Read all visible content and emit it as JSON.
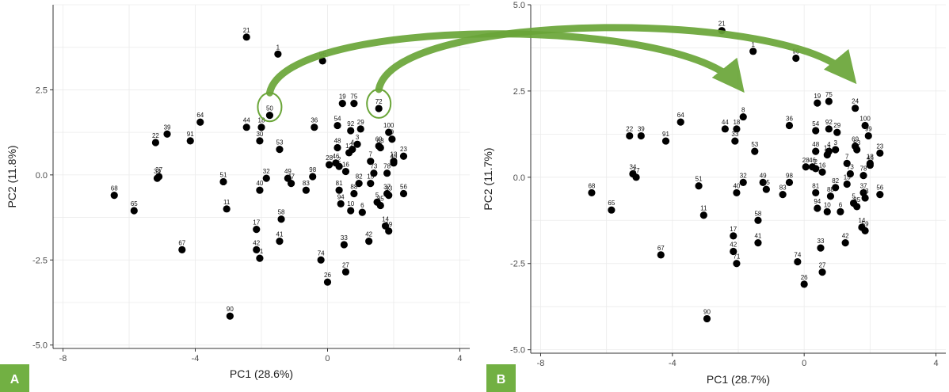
{
  "colors": {
    "point": "#000000",
    "arrow": "#6aa538",
    "circle": "#6aa538",
    "badge": "#72b043",
    "grid": "#ebebeb"
  },
  "chart_data": [
    {
      "type": "scatter",
      "panel_label": "A",
      "xlabel": "PC1 (28.6%)",
      "ylabel": "PC2 (11.8%)",
      "xlim": [
        -8.3,
        4.3
      ],
      "ylim": [
        -5.1,
        5.0
      ],
      "xticks": [
        "-8",
        "-4",
        "0",
        "4"
      ],
      "yticks": [
        "-5.0",
        "-2.5",
        "0.0",
        "2.5"
      ],
      "xtick_values": [
        -8,
        -4,
        0,
        4
      ],
      "ytick_values": [
        -5,
        -2.5,
        0,
        2.5
      ],
      "grid": true,
      "highlight_circles": [
        {
          "label": "50",
          "x": -1.75,
          "y": 1.9
        },
        {
          "label": "72",
          "x": 1.55,
          "y": 2.0
        }
      ],
      "points": [
        {
          "l": "21",
          "x": -2.45,
          "y": 4.05
        },
        {
          "l": "1",
          "x": -1.5,
          "y": 3.55
        },
        {
          "l": "96",
          "x": -0.15,
          "y": 3.35
        },
        {
          "l": "64",
          "x": -3.85,
          "y": 1.55
        },
        {
          "l": "39",
          "x": -4.85,
          "y": 1.2
        },
        {
          "l": "22",
          "x": -5.2,
          "y": 0.95
        },
        {
          "l": "91",
          "x": -4.15,
          "y": 1.0
        },
        {
          "l": "37",
          "x": -5.1,
          "y": -0.05
        },
        {
          "l": "34",
          "x": -5.15,
          "y": -0.1
        },
        {
          "l": "68",
          "x": -6.45,
          "y": -0.6
        },
        {
          "l": "65",
          "x": -5.85,
          "y": -1.05
        },
        {
          "l": "67",
          "x": -4.4,
          "y": -2.2
        },
        {
          "l": "51",
          "x": -3.15,
          "y": -0.2
        },
        {
          "l": "11",
          "x": -3.05,
          "y": -1.0
        },
        {
          "l": "44",
          "x": -2.45,
          "y": 1.4
        },
        {
          "l": "18",
          "x": -2.0,
          "y": 1.4
        },
        {
          "l": "50",
          "x": -1.75,
          "y": 1.75
        },
        {
          "l": "30",
          "x": -2.05,
          "y": 1.0
        },
        {
          "l": "53",
          "x": -1.45,
          "y": 0.75
        },
        {
          "l": "36",
          "x": -0.4,
          "y": 1.4
        },
        {
          "l": "32",
          "x": -1.85,
          "y": -0.1
        },
        {
          "l": "40",
          "x": -2.05,
          "y": -0.45
        },
        {
          "l": "49",
          "x": -1.2,
          "y": -0.1
        },
        {
          "l": "47",
          "x": -1.1,
          "y": -0.25
        },
        {
          "l": "98",
          "x": -0.45,
          "y": -0.05
        },
        {
          "l": "83",
          "x": -0.65,
          "y": -0.45
        },
        {
          "l": "58",
          "x": -1.4,
          "y": -1.3
        },
        {
          "l": "17",
          "x": -2.15,
          "y": -1.6
        },
        {
          "l": "41",
          "x": -1.45,
          "y": -1.95
        },
        {
          "l": "42",
          "x": -2.15,
          "y": -2.2
        },
        {
          "l": "71",
          "x": -2.05,
          "y": -2.45
        },
        {
          "l": "74",
          "x": -0.2,
          "y": -2.5
        },
        {
          "l": "26",
          "x": 0.0,
          "y": -3.15
        },
        {
          "l": "27",
          "x": 0.55,
          "y": -2.85
        },
        {
          "l": "33",
          "x": 0.5,
          "y": -2.05
        },
        {
          "l": "90",
          "x": -2.95,
          "y": -4.15
        },
        {
          "l": "19",
          "x": 0.45,
          "y": 2.1
        },
        {
          "l": "75",
          "x": 0.8,
          "y": 2.1
        },
        {
          "l": "72",
          "x": 1.55,
          "y": 1.95
        },
        {
          "l": "54",
          "x": 0.3,
          "y": 1.45
        },
        {
          "l": "92",
          "x": 0.7,
          "y": 1.3
        },
        {
          "l": "29",
          "x": 1.0,
          "y": 1.35
        },
        {
          "l": "100",
          "x": 1.85,
          "y": 1.25
        },
        {
          "l": "9",
          "x": 1.95,
          "y": 1.05
        },
        {
          "l": "3",
          "x": 0.9,
          "y": 0.9
        },
        {
          "l": "48",
          "x": 0.3,
          "y": 0.8
        },
        {
          "l": "4",
          "x": 0.75,
          "y": 0.75
        },
        {
          "l": "12",
          "x": 0.65,
          "y": 0.65
        },
        {
          "l": "69",
          "x": 1.55,
          "y": 0.85
        },
        {
          "l": "63",
          "x": 1.6,
          "y": 0.8
        },
        {
          "l": "23",
          "x": 2.3,
          "y": 0.55
        },
        {
          "l": "28",
          "x": 0.05,
          "y": 0.3
        },
        {
          "l": "46",
          "x": 0.25,
          "y": 0.35
        },
        {
          "l": "2",
          "x": 0.35,
          "y": 0.25
        },
        {
          "l": "16",
          "x": 0.55,
          "y": 0.1
        },
        {
          "l": "7",
          "x": 1.3,
          "y": 0.4
        },
        {
          "l": "73",
          "x": 1.4,
          "y": 0.05
        },
        {
          "l": "78",
          "x": 1.8,
          "y": 0.05
        },
        {
          "l": "13",
          "x": 2.0,
          "y": 0.4
        },
        {
          "l": "45",
          "x": 2.0,
          "y": 0.35
        },
        {
          "l": "82",
          "x": 0.95,
          "y": -0.25
        },
        {
          "l": "15",
          "x": 1.3,
          "y": -0.25
        },
        {
          "l": "81",
          "x": 0.35,
          "y": -0.45
        },
        {
          "l": "88",
          "x": 0.8,
          "y": -0.55
        },
        {
          "l": "37",
          "x": 1.8,
          "y": -0.55
        },
        {
          "l": "43",
          "x": 1.85,
          "y": -0.6
        },
        {
          "l": "56",
          "x": 2.3,
          "y": -0.55
        },
        {
          "l": "94",
          "x": 0.4,
          "y": -0.85
        },
        {
          "l": "85",
          "x": 1.6,
          "y": -0.9
        },
        {
          "l": "10",
          "x": 0.7,
          "y": -1.05
        },
        {
          "l": "6",
          "x": 1.05,
          "y": -1.1
        },
        {
          "l": "14",
          "x": 1.75,
          "y": -1.5
        },
        {
          "l": "59",
          "x": 1.85,
          "y": -1.65
        },
        {
          "l": "5",
          "x": 1.5,
          "y": -0.8
        },
        {
          "l": "42",
          "x": 1.25,
          "y": -1.95
        }
      ]
    },
    {
      "type": "scatter",
      "panel_label": "B",
      "xlabel": "PC1 (28.7%)",
      "ylabel": "PC2 (11.7%)",
      "xlim": [
        -8.3,
        4.3
      ],
      "ylim": [
        -5.1,
        5.0
      ],
      "xticks": [
        "-8",
        "-4",
        "0",
        "4"
      ],
      "yticks": [
        "-5.0",
        "-2.5",
        "0.0",
        "2.5",
        "5.0"
      ],
      "xtick_values": [
        -8,
        -4,
        0,
        4
      ],
      "ytick_values": [
        -5,
        -2.5,
        0,
        2.5,
        5
      ],
      "grid": true,
      "points": [
        {
          "l": "21",
          "x": -2.5,
          "y": 4.25
        },
        {
          "l": "1",
          "x": -1.55,
          "y": 3.65
        },
        {
          "l": "96",
          "x": -0.25,
          "y": 3.45
        },
        {
          "l": "64",
          "x": -3.75,
          "y": 1.6
        },
        {
          "l": "39",
          "x": -4.95,
          "y": 1.2
        },
        {
          "l": "22",
          "x": -5.3,
          "y": 1.2
        },
        {
          "l": "91",
          "x": -4.2,
          "y": 1.05
        },
        {
          "l": "34",
          "x": -5.2,
          "y": 0.1
        },
        {
          "l": "47",
          "x": -5.1,
          "y": 0.0
        },
        {
          "l": "68",
          "x": -6.45,
          "y": -0.45
        },
        {
          "l": "65",
          "x": -5.85,
          "y": -0.95
        },
        {
          "l": "67",
          "x": -4.35,
          "y": -2.25
        },
        {
          "l": "51",
          "x": -3.2,
          "y": -0.25
        },
        {
          "l": "11",
          "x": -3.05,
          "y": -1.1
        },
        {
          "l": "44",
          "x": -2.4,
          "y": 1.4
        },
        {
          "l": "18",
          "x": -2.05,
          "y": 1.4
        },
        {
          "l": "8",
          "x": -1.85,
          "y": 1.75
        },
        {
          "l": "33",
          "x": -2.1,
          "y": 1.05
        },
        {
          "l": "53",
          "x": -1.5,
          "y": 0.75
        },
        {
          "l": "36",
          "x": -0.45,
          "y": 1.5
        },
        {
          "l": "32",
          "x": -1.85,
          "y": -0.15
        },
        {
          "l": "40",
          "x": -2.05,
          "y": -0.45
        },
        {
          "l": "49",
          "x": -1.25,
          "y": -0.15
        },
        {
          "l": "45",
          "x": -1.15,
          "y": -0.35
        },
        {
          "l": "98",
          "x": -0.45,
          "y": -0.15
        },
        {
          "l": "83",
          "x": -0.65,
          "y": -0.5
        },
        {
          "l": "58",
          "x": -1.4,
          "y": -1.25
        },
        {
          "l": "17",
          "x": -2.15,
          "y": -1.7
        },
        {
          "l": "41",
          "x": -1.4,
          "y": -1.9
        },
        {
          "l": "42",
          "x": -2.15,
          "y": -2.15
        },
        {
          "l": "71",
          "x": -2.05,
          "y": -2.5
        },
        {
          "l": "74",
          "x": -0.2,
          "y": -2.45
        },
        {
          "l": "26",
          "x": 0.0,
          "y": -3.1
        },
        {
          "l": "27",
          "x": 0.55,
          "y": -2.75
        },
        {
          "l": "33",
          "x": 0.5,
          "y": -2.05
        },
        {
          "l": "90",
          "x": -2.95,
          "y": -4.1
        },
        {
          "l": "19",
          "x": 0.4,
          "y": 2.15
        },
        {
          "l": "75",
          "x": 0.75,
          "y": 2.2
        },
        {
          "l": "24",
          "x": 1.55,
          "y": 2.0
        },
        {
          "l": "54",
          "x": 0.35,
          "y": 1.35
        },
        {
          "l": "92",
          "x": 0.75,
          "y": 1.4
        },
        {
          "l": "29",
          "x": 1.0,
          "y": 1.3
        },
        {
          "l": "100",
          "x": 1.85,
          "y": 1.5
        },
        {
          "l": "99",
          "x": 1.95,
          "y": 1.2
        },
        {
          "l": "3",
          "x": 0.95,
          "y": 0.8
        },
        {
          "l": "48",
          "x": 0.35,
          "y": 0.75
        },
        {
          "l": "4",
          "x": 0.75,
          "y": 0.75
        },
        {
          "l": "12",
          "x": 0.7,
          "y": 0.65
        },
        {
          "l": "69",
          "x": 1.55,
          "y": 0.9
        },
        {
          "l": "63",
          "x": 1.6,
          "y": 0.8
        },
        {
          "l": "23",
          "x": 2.3,
          "y": 0.7
        },
        {
          "l": "28",
          "x": 0.05,
          "y": 0.3
        },
        {
          "l": "46",
          "x": 0.25,
          "y": 0.3
        },
        {
          "l": "2",
          "x": 0.35,
          "y": 0.25
        },
        {
          "l": "16",
          "x": 0.55,
          "y": 0.15
        },
        {
          "l": "7",
          "x": 1.3,
          "y": 0.4
        },
        {
          "l": "73",
          "x": 1.4,
          "y": 0.1
        },
        {
          "l": "78",
          "x": 1.8,
          "y": 0.05
        },
        {
          "l": "13",
          "x": 2.0,
          "y": 0.4
        },
        {
          "l": "45",
          "x": 2.0,
          "y": 0.35
        },
        {
          "l": "82",
          "x": 0.95,
          "y": -0.3
        },
        {
          "l": "15",
          "x": 1.3,
          "y": -0.2
        },
        {
          "l": "81",
          "x": 0.35,
          "y": -0.45
        },
        {
          "l": "88",
          "x": 0.8,
          "y": -0.55
        },
        {
          "l": "37",
          "x": 1.8,
          "y": -0.45
        },
        {
          "l": "43",
          "x": 1.85,
          "y": -0.6
        },
        {
          "l": "56",
          "x": 2.3,
          "y": -0.5
        },
        {
          "l": "94",
          "x": 0.4,
          "y": -0.9
        },
        {
          "l": "85",
          "x": 1.6,
          "y": -0.85
        },
        {
          "l": "10",
          "x": 0.7,
          "y": -1.0
        },
        {
          "l": "6",
          "x": 1.1,
          "y": -1.0
        },
        {
          "l": "14",
          "x": 1.75,
          "y": -1.45
        },
        {
          "l": "59",
          "x": 1.85,
          "y": -1.55
        },
        {
          "l": "5",
          "x": 1.5,
          "y": -0.75
        },
        {
          "l": "42",
          "x": 1.25,
          "y": -1.9
        }
      ]
    }
  ]
}
